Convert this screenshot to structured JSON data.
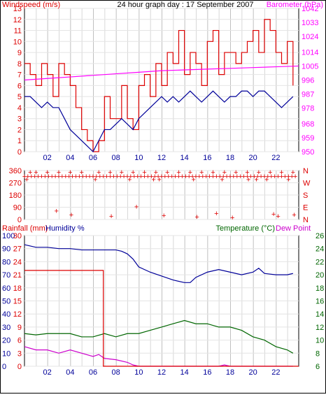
{
  "chart_data": [
    {
      "type": "line",
      "title": "24 hour graph day : 17 September 2007",
      "left_axis": {
        "label": "Windspeed (m/s)",
        "ticks": [
          0,
          1,
          2,
          3,
          4,
          5,
          6,
          7,
          8,
          9,
          10,
          11,
          12,
          13
        ],
        "range": [
          0,
          13
        ]
      },
      "right_axis": {
        "label": "Barometer (hPa)",
        "ticks": [
          950,
          959,
          968,
          978,
          987,
          996,
          1005,
          1014,
          1024,
          1033,
          1042
        ],
        "range": [
          950,
          1042
        ]
      },
      "x_ticks": [
        "02",
        "04",
        "06",
        "08",
        "10",
        "12",
        "14",
        "16",
        "18",
        "20",
        "22"
      ],
      "x_range_hours": [
        0,
        24
      ],
      "grid": true,
      "series": [
        {
          "name": "Wind gust",
          "axis": "left",
          "color": "#dd0000",
          "x": [
            0,
            0.5,
            1,
            1.5,
            2,
            2.5,
            3,
            3.5,
            4,
            4.5,
            5,
            5.5,
            6,
            6.5,
            7,
            7.5,
            8,
            8.5,
            9,
            9.5,
            10,
            10.5,
            11,
            11.5,
            12,
            12.5,
            13,
            13.5,
            14,
            14.5,
            15,
            15.5,
            16,
            16.5,
            17,
            17.5,
            18,
            18.5,
            19,
            19.5,
            20,
            20.5,
            21,
            21.5,
            22,
            22.5,
            23,
            23.5
          ],
          "values": [
            8,
            7,
            6,
            8,
            7,
            5,
            8,
            7,
            6,
            4,
            2,
            1,
            0,
            1,
            5,
            3,
            3,
            6,
            3,
            2,
            6,
            7,
            5,
            8,
            6,
            9,
            8,
            11,
            7,
            9,
            8,
            6,
            10,
            11,
            7,
            9,
            9,
            8,
            9,
            10,
            11,
            9,
            12,
            11,
            9,
            8,
            10,
            6
          ]
        },
        {
          "name": "Wind average",
          "axis": "left",
          "color": "#000099",
          "x": [
            0,
            0.5,
            1,
            1.5,
            2,
            2.5,
            3,
            3.5,
            4,
            4.5,
            5,
            5.5,
            6,
            6.5,
            7,
            7.5,
            8,
            8.5,
            9,
            9.5,
            10,
            10.5,
            11,
            11.5,
            12,
            12.5,
            13,
            13.5,
            14,
            14.5,
            15,
            15.5,
            16,
            16.5,
            17,
            17.5,
            18,
            18.5,
            19,
            19.5,
            20,
            20.5,
            21,
            21.5,
            22,
            22.5,
            23,
            23.5
          ],
          "values": [
            5,
            5,
            4.5,
            4,
            4.5,
            4,
            4,
            3,
            2,
            1.5,
            1,
            0.5,
            0,
            1,
            2,
            2,
            2.5,
            3,
            2.5,
            2,
            3,
            3.5,
            4,
            4.5,
            5,
            4.5,
            5,
            4.5,
            5,
            5.5,
            5,
            4.5,
            5,
            5.5,
            5,
            4.5,
            5,
            5,
            5.5,
            5.5,
            5,
            5.5,
            5.5,
            5,
            4.5,
            4,
            4.5,
            5
          ]
        },
        {
          "name": "Barometer",
          "axis": "right",
          "color": "#ff00ff",
          "x": [
            0,
            2,
            4,
            6,
            8,
            10,
            12,
            14,
            16,
            18,
            20,
            22,
            24
          ],
          "values": [
            996,
            997,
            998,
            999,
            1000,
            1001,
            1002,
            1002.5,
            1003,
            1003.5,
            1004,
            1004.5,
            1005
          ]
        }
      ]
    },
    {
      "type": "scatter",
      "title": "",
      "left_axis": {
        "ticks": [
          0,
          90,
          180,
          270,
          360
        ],
        "range": [
          0,
          360
        ]
      },
      "right_axis_labels": [
        "N",
        "E",
        "S",
        "W",
        "N"
      ],
      "x_ticks": [
        "02",
        "04",
        "06",
        "08",
        "10",
        "12",
        "14",
        "16",
        "18",
        "20",
        "22"
      ],
      "x_range_hours": [
        0,
        24
      ],
      "grid": true,
      "series": [
        {
          "name": "Wind direction",
          "color": "#dd0000",
          "x": [
            0,
            0.3,
            0.6,
            0.9,
            1.2,
            1.5,
            1.8,
            2.1,
            2.4,
            2.7,
            3.0,
            3.3,
            3.6,
            3.9,
            4.2,
            4.5,
            4.8,
            5.1,
            5.4,
            5.7,
            6.0,
            6.3,
            6.6,
            6.9,
            7.2,
            7.5,
            7.8,
            8.1,
            8.4,
            8.7,
            9.0,
            9.3,
            9.6,
            9.9,
            10.2,
            10.5,
            10.8,
            11.1,
            11.4,
            11.7,
            12.0,
            12.3,
            12.6,
            12.9,
            13.2,
            13.5,
            13.8,
            14.1,
            14.4,
            14.7,
            15.0,
            15.3,
            15.6,
            15.9,
            16.2,
            16.5,
            16.8,
            17.1,
            17.4,
            17.7,
            18.0,
            18.3,
            18.6,
            18.9,
            19.2,
            19.5,
            19.8,
            20.1,
            20.4,
            20.7,
            21.0,
            21.3,
            21.6,
            21.9,
            22.2,
            22.5,
            22.8,
            23.1,
            23.4,
            23.7,
            0.5,
            1.0,
            2.0,
            3.0,
            4.0,
            5.0,
            6.5,
            7.5,
            8.5,
            9.5,
            10.5,
            11.5,
            12.5,
            13.5,
            14.5,
            15.5,
            16.5,
            17.5,
            18.5,
            19.5,
            20.5,
            21.5,
            22.5,
            23.5,
            0.2,
            6.2,
            9.2,
            11.3,
            11.8,
            14.8,
            17.3,
            19.6,
            20.3,
            21.2,
            23.1,
            4.1,
            7.6,
            12.2,
            15.1,
            18.2,
            21.8,
            23.6,
            2.8,
            9.8,
            16.8,
            22.2
          ],
          "values": [
            315,
            315,
            315,
            315,
            315,
            315,
            315,
            315,
            315,
            315,
            315,
            315,
            315,
            315,
            315,
            315,
            315,
            315,
            315,
            315,
            315,
            315,
            315,
            315,
            315,
            315,
            315,
            315,
            315,
            315,
            315,
            315,
            315,
            315,
            315,
            315,
            315,
            315,
            315,
            315,
            315,
            315,
            315,
            315,
            315,
            315,
            315,
            315,
            315,
            315,
            315,
            315,
            315,
            315,
            315,
            315,
            315,
            315,
            315,
            315,
            315,
            315,
            315,
            315,
            315,
            315,
            315,
            315,
            315,
            315,
            315,
            315,
            315,
            315,
            315,
            315,
            315,
            315,
            315,
            315,
            345,
            345,
            345,
            345,
            345,
            345,
            345,
            345,
            345,
            345,
            345,
            345,
            345,
            345,
            345,
            345,
            345,
            345,
            345,
            345,
            345,
            345,
            345,
            345,
            290,
            290,
            290,
            290,
            290,
            290,
            290,
            290,
            290,
            290,
            290,
            30,
            20,
            25,
            15,
            10,
            35,
            30,
            60,
            90,
            40,
            20
          ]
        }
      ]
    },
    {
      "type": "line",
      "title": "",
      "left_axis": {
        "label": "Rainfall (mm)",
        "ticks": [
          0,
          3,
          6,
          9,
          12,
          15,
          18,
          21,
          24,
          27,
          30
        ],
        "range": [
          0,
          30
        ]
      },
      "left_axis_2": {
        "label": "Humidity %",
        "ticks": [
          0,
          10,
          20,
          30,
          40,
          50,
          60,
          70,
          80,
          90,
          100
        ],
        "range": [
          0,
          100
        ]
      },
      "right_axis": {
        "label": "Temperature (°C)",
        "ticks": [
          6,
          8,
          10,
          12,
          14,
          16,
          18,
          20,
          22,
          24,
          26
        ],
        "range": [
          6,
          26
        ]
      },
      "right_label_2": "Dew Point",
      "x_ticks": [
        "02",
        "04",
        "06",
        "08",
        "10",
        "12",
        "14",
        "16",
        "18",
        "20",
        "22"
      ],
      "x_range_hours": [
        0,
        24
      ],
      "grid": true,
      "series": [
        {
          "name": "Humidity %",
          "axis": "left_2",
          "color": "#000099",
          "x": [
            0,
            1,
            2,
            3,
            4,
            5,
            6,
            7,
            8,
            8.5,
            9,
            9.5,
            10,
            11,
            12,
            13,
            14,
            14.5,
            15,
            16,
            17,
            18,
            19,
            20,
            20.5,
            21,
            22,
            23,
            23.5
          ],
          "values": [
            93,
            91,
            91,
            90,
            90,
            89,
            89,
            89,
            89,
            88,
            86,
            82,
            76,
            72,
            69,
            66,
            64,
            64,
            68,
            72,
            74,
            72,
            70,
            72,
            75,
            71,
            70,
            70,
            71
          ]
        },
        {
          "name": "Temperature (°C)",
          "axis": "right",
          "color": "#006600",
          "x": [
            0,
            1,
            2,
            3,
            4,
            5,
            6,
            7,
            8,
            9,
            10,
            11,
            12,
            13,
            14,
            15,
            16,
            17,
            18,
            19,
            20,
            21,
            22,
            23,
            23.5
          ],
          "values": [
            11,
            10.8,
            11,
            11,
            11,
            10.5,
            10.5,
            11,
            10.5,
            11,
            11,
            11.5,
            12,
            12.5,
            13,
            12.5,
            12.5,
            12,
            12,
            11.5,
            10.5,
            10,
            9,
            8.5,
            8
          ]
        },
        {
          "name": "Dew Point",
          "axis": "right",
          "color": "#cc00cc",
          "x": [
            0,
            1,
            2,
            3,
            4,
            5,
            6,
            6.5,
            7,
            8,
            9,
            9.5,
            10,
            11,
            12,
            13,
            14,
            15,
            16,
            17,
            17.5,
            18,
            19,
            20,
            21,
            22,
            23,
            23.5
          ],
          "values": [
            9,
            8.5,
            8.5,
            8,
            8.5,
            8,
            7.5,
            7.8,
            7.2,
            7,
            6.6,
            6.2,
            6,
            6,
            6,
            6,
            6,
            6,
            6,
            6,
            6.2,
            6,
            6,
            6,
            6,
            6,
            6,
            6
          ]
        },
        {
          "name": "Rainfall (mm)",
          "axis": "left",
          "color": "#dd0000",
          "x": [
            0,
            6.9,
            6.9,
            24
          ],
          "values": [
            22,
            22,
            0,
            0
          ]
        }
      ]
    }
  ]
}
